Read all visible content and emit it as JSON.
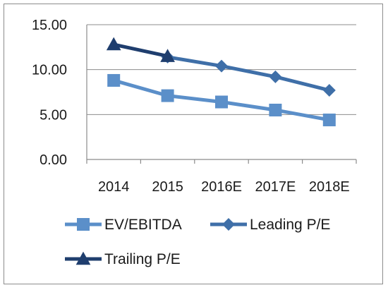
{
  "chart_data": {
    "type": "line",
    "categories": [
      "2014",
      "2015",
      "2016E",
      "2017E",
      "2018E"
    ],
    "yticks": [
      "0.00",
      "5.00",
      "10.00",
      "15.00"
    ],
    "ylim": [
      0,
      15
    ],
    "grid": true,
    "legend_position": "bottom",
    "series": [
      {
        "name": "EV/EBITDA",
        "marker": "square",
        "color": "#5b8fc9",
        "values": [
          8.8,
          7.1,
          6.4,
          5.5,
          4.4
        ]
      },
      {
        "name": "Leading P/E",
        "marker": "diamond",
        "color": "#3f6fa8",
        "values": [
          null,
          11.4,
          10.4,
          9.2,
          7.7
        ]
      },
      {
        "name": "Trailing P/E",
        "marker": "triangle",
        "color": "#1f3e6e",
        "values": [
          12.8,
          11.5,
          null,
          null,
          null
        ]
      }
    ]
  }
}
